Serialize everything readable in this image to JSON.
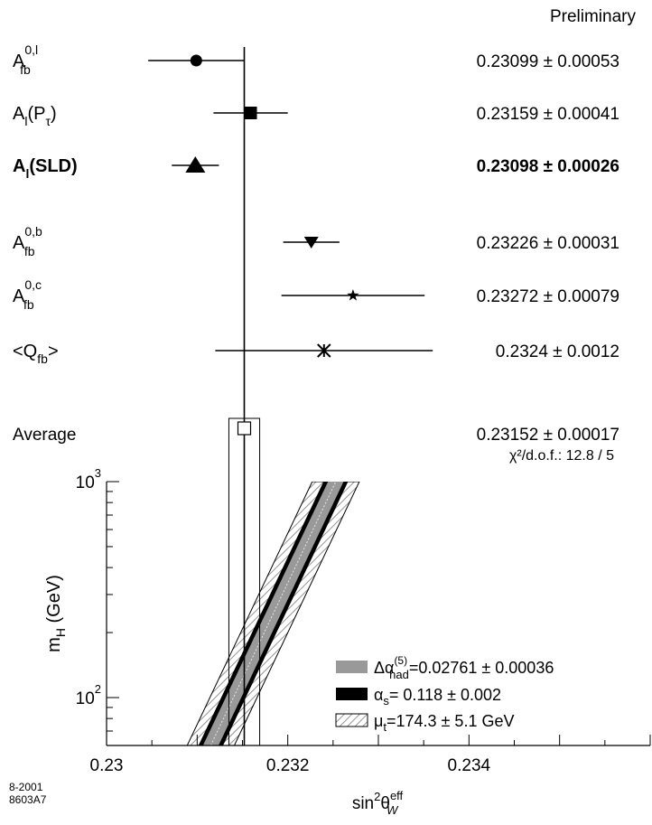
{
  "chart_data": {
    "type": "scatter",
    "header_label": "Preliminary",
    "xlabel": "sin²θ_W^eff",
    "xlim": [
      0.23,
      0.236
    ],
    "x_ticks": [
      0.23,
      0.232,
      0.234
    ],
    "x_tick_labels": [
      "0.23",
      "0.232",
      "0.234"
    ],
    "measurements": [
      {
        "label_main": "A",
        "label_sup": "0,l",
        "label_sub": "fb",
        "label_tail": "",
        "value": 0.23099,
        "error": 0.00053,
        "text": "0.23099 ± 0.00053",
        "marker": "circle",
        "bold": false
      },
      {
        "label_main": "A",
        "label_sup": "",
        "label_sub": "l",
        "label_tail": "(P",
        "label_tail_sub": "τ",
        "label_close": ")",
        "value": 0.23159,
        "error": 0.00041,
        "text": "0.23159 ± 0.00041",
        "marker": "square",
        "bold": false
      },
      {
        "label_main": "A",
        "label_sup": "",
        "label_sub": "l",
        "label_tail": "(SLD)",
        "value": 0.23098,
        "error": 0.00026,
        "text": "0.23098 ± 0.00026",
        "marker": "triangle-up",
        "bold": true
      },
      {
        "label_main": "A",
        "label_sup": "0,b",
        "label_sub": "fb",
        "label_tail": "",
        "value": 0.23226,
        "error": 0.00031,
        "text": "0.23226 ± 0.00031",
        "marker": "triangle-down",
        "bold": false
      },
      {
        "label_main": "A",
        "label_sup": "0,c",
        "label_sub": "fb",
        "label_tail": "",
        "value": 0.23272,
        "error": 0.00079,
        "text": "0.23272 ± 0.00079",
        "marker": "star",
        "bold": false
      },
      {
        "label_main": "<Q",
        "label_sup": "",
        "label_sub": "fb",
        "label_tail": ">",
        "value": 0.2324,
        "error": 0.0012,
        "text": "0.2324 ± 0.0012",
        "marker": "asterisk",
        "bold": false
      }
    ],
    "average": {
      "label": "Average",
      "value": 0.23152,
      "error": 0.00017,
      "text": "0.23152 ± 0.00017",
      "chi2": "χ²/d.o.f.: 12.8 / 5"
    },
    "mh_panel": {
      "ylabel": "m_H (GeV)",
      "ylim": [
        60,
        1000
      ],
      "yscale": "log",
      "y_tick_labels": [
        {
          "value": 100,
          "base": "10",
          "exp": "2"
        },
        {
          "value": 1000,
          "base": "10",
          "exp": "3"
        }
      ],
      "band_points": [
        {
          "mh": 60,
          "sin2": 0.23115
        },
        {
          "mh": 1000,
          "sin2": 0.23253
        }
      ],
      "band_widths": {
        "alpha_had": 8e-05,
        "alpha_s": 0.00013,
        "mt": 0.00026
      }
    },
    "legend": [
      {
        "key": "alpha_had",
        "swatch": "#999999",
        "text": "Δα(5)had = 0.02761 ± 0.00036",
        "sym": "Δα",
        "sup": "(5)",
        "sub": "had",
        "rest": "=0.02761 ± 0.00036"
      },
      {
        "key": "alpha_s",
        "swatch": "#000000",
        "text": "αs = 0.118 ± 0.002",
        "sym": "α",
        "sup": "",
        "sub": "s",
        "rest": "= 0.118 ± 0.002"
      },
      {
        "key": "mt",
        "swatch": "hatched",
        "text": "μt = 174.3 ± 5.1 GeV",
        "sym": "μ",
        "sup": "",
        "sub": "t",
        "rest": "=174.3 ± 5.1 GeV"
      }
    ],
    "legend_placement": "bottom-right",
    "grid": false,
    "corner_label_line1": "8-2001",
    "corner_label_line2": "8603A7"
  }
}
